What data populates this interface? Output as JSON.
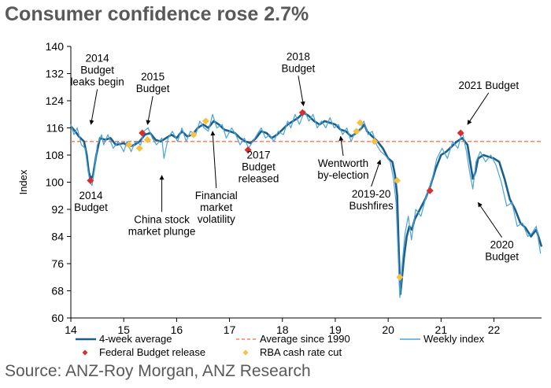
{
  "title": "Consumer confidence rose 2.7%",
  "source": "Source: ANZ-Roy Morgan, ANZ Research",
  "chart_data": {
    "type": "line",
    "title": "Consumer confidence rose 2.7%",
    "xlabel": "",
    "ylabel": "Index",
    "xlim": [
      14,
      22.9
    ],
    "ylim": [
      60,
      140
    ],
    "x_ticks": [
      14,
      15,
      16,
      17,
      18,
      19,
      20,
      21,
      22
    ],
    "y_ticks": [
      60,
      68,
      76,
      84,
      92,
      100,
      108,
      116,
      124,
      132,
      140
    ],
    "grid": false,
    "legend_position": "bottom",
    "average_since_1990": 112,
    "series": [
      {
        "name": "4-week average",
        "color": "#1b5f8c",
        "style": "solid-thick",
        "points": [
          [
            14.0,
            116.5
          ],
          [
            14.08,
            115
          ],
          [
            14.15,
            113.5
          ],
          [
            14.25,
            112
          ],
          [
            14.3,
            108
          ],
          [
            14.34,
            103
          ],
          [
            14.38,
            101
          ],
          [
            14.42,
            102
          ],
          [
            14.48,
            108
          ],
          [
            14.55,
            113
          ],
          [
            14.65,
            112.5
          ],
          [
            14.75,
            113
          ],
          [
            14.85,
            111
          ],
          [
            15.0,
            111.5
          ],
          [
            15.1,
            110.5
          ],
          [
            15.2,
            111
          ],
          [
            15.3,
            112
          ],
          [
            15.4,
            114
          ],
          [
            15.5,
            114.5
          ],
          [
            15.6,
            112.5
          ],
          [
            15.7,
            112
          ],
          [
            15.8,
            113
          ],
          [
            15.9,
            114
          ],
          [
            16.0,
            113
          ],
          [
            16.1,
            115
          ],
          [
            16.2,
            113.5
          ],
          [
            16.3,
            114
          ],
          [
            16.4,
            116
          ],
          [
            16.5,
            117
          ],
          [
            16.6,
            116
          ],
          [
            16.7,
            118
          ],
          [
            16.8,
            117
          ],
          [
            16.9,
            115.5
          ],
          [
            17.0,
            115
          ],
          [
            17.1,
            114.5
          ],
          [
            17.2,
            113
          ],
          [
            17.3,
            112
          ],
          [
            17.4,
            111.5
          ],
          [
            17.5,
            113
          ],
          [
            17.6,
            115
          ],
          [
            17.7,
            114.5
          ],
          [
            17.8,
            113
          ],
          [
            17.9,
            114
          ],
          [
            18.0,
            115.5
          ],
          [
            18.1,
            117
          ],
          [
            18.2,
            118
          ],
          [
            18.3,
            119
          ],
          [
            18.4,
            120.5
          ],
          [
            18.5,
            119.5
          ],
          [
            18.6,
            118
          ],
          [
            18.7,
            117
          ],
          [
            18.8,
            118
          ],
          [
            18.9,
            117.5
          ],
          [
            19.0,
            117
          ],
          [
            19.1,
            115.5
          ],
          [
            19.2,
            115
          ],
          [
            19.3,
            113.5
          ],
          [
            19.4,
            114.5
          ],
          [
            19.5,
            116
          ],
          [
            19.55,
            117
          ],
          [
            19.6,
            115
          ],
          [
            19.7,
            113.5
          ],
          [
            19.8,
            112
          ],
          [
            19.9,
            110
          ],
          [
            20.0,
            107
          ],
          [
            20.08,
            106
          ],
          [
            20.13,
            102
          ],
          [
            20.17,
            96
          ],
          [
            20.2,
            80
          ],
          [
            20.23,
            67
          ],
          [
            20.25,
            70
          ],
          [
            20.3,
            78
          ],
          [
            20.35,
            84
          ],
          [
            20.4,
            87
          ],
          [
            20.45,
            86
          ],
          [
            20.5,
            89
          ],
          [
            20.6,
            92
          ],
          [
            20.7,
            95
          ],
          [
            20.8,
            99
          ],
          [
            20.9,
            104
          ],
          [
            21.0,
            108
          ],
          [
            21.1,
            109
          ],
          [
            21.2,
            110.5
          ],
          [
            21.3,
            112
          ],
          [
            21.4,
            113
          ],
          [
            21.5,
            111
          ],
          [
            21.55,
            106
          ],
          [
            21.6,
            101
          ],
          [
            21.65,
            103
          ],
          [
            21.7,
            107
          ],
          [
            21.8,
            108
          ],
          [
            21.9,
            107.5
          ],
          [
            22.0,
            107
          ],
          [
            22.1,
            106
          ],
          [
            22.2,
            101
          ],
          [
            22.3,
            95
          ],
          [
            22.4,
            92
          ],
          [
            22.5,
            88
          ],
          [
            22.6,
            86.5
          ],
          [
            22.7,
            84
          ],
          [
            22.8,
            86
          ],
          [
            22.9,
            81
          ]
        ]
      },
      {
        "name": "Weekly index",
        "color": "#4aa3d8",
        "style": "solid-thin",
        "points": [
          [
            14.0,
            117
          ],
          [
            14.06,
            114
          ],
          [
            14.12,
            116
          ],
          [
            14.2,
            111
          ],
          [
            14.27,
            110
          ],
          [
            14.32,
            104
          ],
          [
            14.36,
            100
          ],
          [
            14.4,
            99
          ],
          [
            14.45,
            104
          ],
          [
            14.5,
            111
          ],
          [
            14.58,
            114
          ],
          [
            14.62,
            111
          ],
          [
            14.7,
            114
          ],
          [
            14.8,
            110
          ],
          [
            14.9,
            112
          ],
          [
            15.0,
            109
          ],
          [
            15.06,
            112
          ],
          [
            15.14,
            109
          ],
          [
            15.22,
            112
          ],
          [
            15.32,
            111
          ],
          [
            15.38,
            115
          ],
          [
            15.46,
            116
          ],
          [
            15.54,
            113
          ],
          [
            15.62,
            111
          ],
          [
            15.72,
            113
          ],
          [
            15.76,
            107
          ],
          [
            15.84,
            113
          ],
          [
            15.92,
            115
          ],
          [
            16.02,
            112
          ],
          [
            16.1,
            116
          ],
          [
            16.18,
            112
          ],
          [
            16.26,
            115
          ],
          [
            16.36,
            114
          ],
          [
            16.44,
            118
          ],
          [
            16.52,
            116
          ],
          [
            16.6,
            115
          ],
          [
            16.68,
            120
          ],
          [
            16.76,
            116
          ],
          [
            16.86,
            117
          ],
          [
            16.94,
            113
          ],
          [
            17.04,
            116
          ],
          [
            17.12,
            114
          ],
          [
            17.2,
            111
          ],
          [
            17.28,
            113
          ],
          [
            17.36,
            110
          ],
          [
            17.44,
            112
          ],
          [
            17.52,
            114
          ],
          [
            17.6,
            116
          ],
          [
            17.68,
            113
          ],
          [
            17.76,
            114
          ],
          [
            17.84,
            112
          ],
          [
            17.92,
            115
          ],
          [
            18.02,
            114
          ],
          [
            18.1,
            118
          ],
          [
            18.16,
            116
          ],
          [
            18.24,
            120
          ],
          [
            18.32,
            117
          ],
          [
            18.42,
            121
          ],
          [
            18.5,
            118
          ],
          [
            18.58,
            120
          ],
          [
            18.66,
            116
          ],
          [
            18.74,
            118
          ],
          [
            18.82,
            116
          ],
          [
            18.9,
            119
          ],
          [
            18.98,
            116
          ],
          [
            19.06,
            117
          ],
          [
            19.14,
            114
          ],
          [
            19.22,
            116
          ],
          [
            19.3,
            112
          ],
          [
            19.38,
            115
          ],
          [
            19.46,
            115
          ],
          [
            19.54,
            118
          ],
          [
            19.62,
            114
          ],
          [
            19.7,
            115
          ],
          [
            19.78,
            111
          ],
          [
            19.86,
            109
          ],
          [
            19.94,
            108
          ],
          [
            20.04,
            106
          ],
          [
            20.1,
            101
          ],
          [
            20.15,
            94
          ],
          [
            20.19,
            78
          ],
          [
            20.22,
            66
          ],
          [
            20.26,
            75
          ],
          [
            20.32,
            85
          ],
          [
            20.38,
            90
          ],
          [
            20.44,
            83
          ],
          [
            20.52,
            92
          ],
          [
            20.62,
            90
          ],
          [
            20.72,
            96
          ],
          [
            20.82,
            100
          ],
          [
            20.92,
            107
          ],
          [
            21.02,
            110
          ],
          [
            21.12,
            107
          ],
          [
            21.22,
            112
          ],
          [
            21.32,
            110
          ],
          [
            21.4,
            115
          ],
          [
            21.48,
            109
          ],
          [
            21.54,
            103
          ],
          [
            21.6,
            98
          ],
          [
            21.66,
            106
          ],
          [
            21.74,
            109
          ],
          [
            21.84,
            106
          ],
          [
            21.94,
            108
          ],
          [
            22.04,
            105
          ],
          [
            22.14,
            100
          ],
          [
            22.24,
            93
          ],
          [
            22.34,
            94
          ],
          [
            22.44,
            87
          ],
          [
            22.54,
            88
          ],
          [
            22.64,
            84
          ],
          [
            22.72,
            85
          ],
          [
            22.8,
            87
          ],
          [
            22.88,
            79
          ]
        ]
      },
      {
        "name": "Average since 1990",
        "color": "#ff7f5a",
        "style": "dashed",
        "value": 112
      },
      {
        "name": "Federal Budget release",
        "color": "#d62f2f",
        "style": "diamond-marker",
        "points": [
          [
            14.37,
            100.5
          ],
          [
            15.35,
            114.5
          ],
          [
            17.35,
            109.5
          ],
          [
            18.38,
            120.5
          ],
          [
            20.79,
            97.5
          ],
          [
            21.37,
            114.5
          ]
        ]
      },
      {
        "name": "RBA cash rate cut",
        "color": "#f6c142",
        "style": "diamond-marker",
        "points": [
          [
            15.1,
            111
          ],
          [
            15.3,
            110
          ],
          [
            15.45,
            112.5
          ],
          [
            16.32,
            114
          ],
          [
            16.55,
            118
          ],
          [
            19.4,
            115
          ],
          [
            19.47,
            117.5
          ],
          [
            19.74,
            112
          ],
          [
            20.17,
            100.5
          ],
          [
            20.22,
            72
          ]
        ]
      }
    ],
    "annotations": [
      {
        "id": "a2014leaks",
        "text": [
          "2014",
          "Budget",
          "leaks begin"
        ],
        "x": 14.5,
        "y": 135.5,
        "arrow_to": [
          14.38,
          117
        ]
      },
      {
        "id": "a2014budget",
        "text": [
          "2014",
          "Budget"
        ],
        "x": 14.38,
        "y": 95,
        "arrow_to": null
      },
      {
        "id": "a2015budget",
        "text": [
          "2015",
          "Budget"
        ],
        "x": 15.55,
        "y": 130,
        "arrow_to": [
          15.45,
          117
        ]
      },
      {
        "id": "achina",
        "text": [
          "China stock",
          "market plunge"
        ],
        "x": 15.72,
        "y": 88,
        "arrow_to": [
          15.72,
          102
        ]
      },
      {
        "id": "afinancial",
        "text": [
          "Financial",
          "market",
          "volatility"
        ],
        "x": 16.75,
        "y": 95,
        "arrow_to": [
          16.68,
          115
        ]
      },
      {
        "id": "a2017budget",
        "text": [
          "2017",
          "Budget",
          "released"
        ],
        "x": 17.55,
        "y": 107,
        "arrow_to": null
      },
      {
        "id": "a2018budget",
        "text": [
          "2018",
          "Budget"
        ],
        "x": 18.3,
        "y": 136,
        "arrow_to": [
          18.4,
          122.5
        ]
      },
      {
        "id": "awentworth",
        "text": [
          "Wentworth",
          "by-election"
        ],
        "x": 19.15,
        "y": 104.5,
        "arrow_to": [
          19.1,
          113.5
        ]
      },
      {
        "id": "abushfires",
        "text": [
          "2019-20",
          "Bushfires"
        ],
        "x": 19.68,
        "y": 95.5,
        "arrow_to": [
          19.85,
          106.5
        ]
      },
      {
        "id": "a2021budget",
        "text": [
          "2021 Budget"
        ],
        "x": 21.9,
        "y": 127.5,
        "arrow_to": [
          21.5,
          117
        ]
      },
      {
        "id": "a2020budget",
        "text": [
          "2020",
          "Budget"
        ],
        "x": 22.15,
        "y": 80.5,
        "arrow_to": [
          21.7,
          94
        ]
      }
    ]
  }
}
